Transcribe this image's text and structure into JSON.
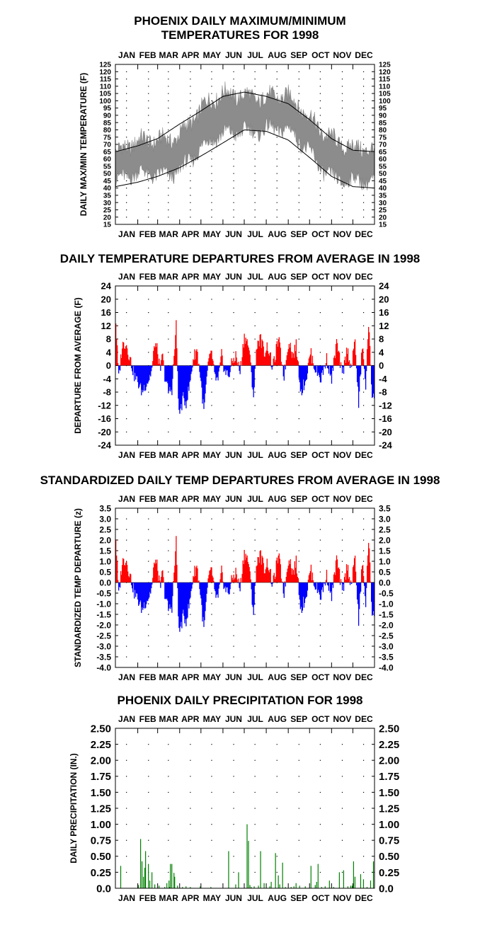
{
  "colors": {
    "range_fill": "#8c8c8c",
    "above": "#ff0000",
    "below": "#0000ff",
    "precip": "#008000",
    "frame": "#000000"
  },
  "chart_data": [
    {
      "type": "area",
      "title_line1": "PHOENIX DAILY MAXIMUM/MINIMUM",
      "title_line2": "TEMPERATURES FOR 1998",
      "ylabel": "DAILY MAX/MIN TEMPERATURE (F)",
      "months": [
        "JAN",
        "FEB",
        "MAR",
        "APR",
        "MAY",
        "JUN",
        "JUL",
        "AUG",
        "SEP",
        "OCT",
        "NOV",
        "DEC"
      ],
      "ylim": [
        15,
        125
      ],
      "yticks": [
        "15",
        "20",
        "25",
        "30",
        "35",
        "40",
        "45",
        "50",
        "55",
        "60",
        "65",
        "70",
        "75",
        "80",
        "85",
        "90",
        "95",
        "100",
        "105",
        "110",
        "115",
        "120",
        "125"
      ],
      "grid": "dotted",
      "normal_high": {
        "x": [
          1,
          32,
          60,
          91,
          121,
          152,
          182,
          213,
          244,
          274,
          305,
          335,
          365
        ],
        "y": [
          65,
          69,
          74,
          84,
          93,
          103,
          106,
          103,
          98,
          87,
          74,
          66,
          65
        ]
      },
      "normal_low": {
        "x": [
          1,
          32,
          60,
          91,
          121,
          152,
          182,
          213,
          244,
          274,
          305,
          335,
          365
        ],
        "y": [
          41,
          44,
          48,
          54,
          62,
          71,
          80,
          79,
          73,
          61,
          48,
          41,
          40
        ]
      },
      "daily_max_anchor": {
        "x": [
          1,
          32,
          60,
          91,
          121,
          152,
          182,
          213,
          244,
          274,
          305,
          335,
          365
        ],
        "y": [
          63,
          68,
          74,
          80,
          92,
          102,
          107,
          104,
          99,
          88,
          78,
          66,
          62
        ]
      },
      "daily_min_anchor": {
        "x": [
          1,
          32,
          60,
          91,
          121,
          152,
          182,
          213,
          244,
          274,
          305,
          335,
          365
        ],
        "y": [
          44,
          46,
          50,
          56,
          65,
          74,
          83,
          82,
          76,
          64,
          51,
          44,
          40
        ]
      }
    },
    {
      "type": "bar",
      "title": "DAILY TEMPERATURE DEPARTURES FROM AVERAGE IN 1998",
      "ylabel": "DEPARTURE FROM AVERAGE (F)",
      "ylim": [
        -24,
        24
      ],
      "yticks": [
        "-24",
        "-20",
        "-16",
        "-12",
        "-8",
        "-4",
        "0",
        "4",
        "8",
        "12",
        "16",
        "20",
        "24"
      ],
      "grid": "dotted",
      "anomaly_anchor": {
        "x": [
          1,
          5,
          10,
          15,
          20,
          27,
          32,
          38,
          42,
          48,
          52,
          56,
          60,
          64,
          66,
          70,
          75,
          80,
          86,
          90,
          96,
          100,
          105,
          110,
          115,
          120,
          125,
          130,
          135,
          140,
          145,
          150,
          155,
          160,
          165,
          170,
          176,
          182,
          188,
          195,
          200,
          205,
          210,
          215,
          222,
          230,
          238,
          245,
          250,
          255,
          262,
          270,
          275,
          282,
          290,
          298,
          305,
          312,
          320,
          327,
          333,
          338,
          343,
          348,
          353,
          357,
          362,
          365
        ],
        "y": [
          13,
          -4,
          6,
          7,
          3,
          -3,
          -5,
          -8,
          -6,
          -4,
          -1,
          7,
          4,
          -3,
          4,
          -3,
          -8,
          -7,
          12,
          -15,
          -10,
          -11,
          -6,
          2,
          5,
          -3,
          -14,
          -2,
          5,
          -3,
          -5,
          3,
          -2,
          -3,
          1,
          3,
          -2,
          9,
          6,
          -9,
          7,
          8,
          4,
          6,
          -1,
          8,
          -3,
          8,
          3,
          6,
          -8,
          -3,
          4,
          -1,
          -4,
          2,
          -4,
          7,
          -3,
          5,
          -1,
          8,
          -12,
          6,
          -6,
          13,
          -9,
          -8
        ]
      }
    },
    {
      "type": "bar",
      "title": "STANDARDIZED DAILY TEMP DEPARTURES FROM AVERAGE IN 1998",
      "ylabel": "STANDARDIZED TEMP DEPARTURE (z)",
      "ylim": [
        -4.0,
        3.5
      ],
      "yticks": [
        "-4.0",
        "-3.5",
        "-3.0",
        "-2.5",
        "-2.0",
        "-1.5",
        "-1.0",
        "-0.5",
        "0.0",
        "0.5",
        "1.0",
        "1.5",
        "2.0",
        "2.5",
        "3.0",
        "3.5"
      ],
      "grid": "dotted",
      "anomaly_scale_from_previous": 0.16
    },
    {
      "type": "bar",
      "title": "PHOENIX DAILY PRECIPITATION FOR 1998",
      "ylabel": "DAILY PRECIPITATION (IN.)",
      "ylim": [
        0,
        2.5
      ],
      "yticks": [
        "0.0",
        "0.25",
        "0.50",
        "0.75",
        "1.00",
        "1.25",
        "1.50",
        "1.75",
        "2.00",
        "2.25",
        "2.50"
      ],
      "grid": "dotted",
      "days": [
        8,
        33,
        36,
        38,
        40,
        42,
        43,
        47,
        49,
        52,
        56,
        62,
        70,
        73,
        76,
        77,
        78,
        80,
        83,
        84,
        88,
        95,
        100,
        106,
        120,
        135,
        160,
        170,
        174,
        186,
        188,
        190,
        192,
        196,
        202,
        205,
        210,
        218,
        220,
        226,
        230,
        232,
        236,
        240,
        248,
        252,
        255,
        260,
        268,
        276,
        282,
        284,
        286,
        291,
        296,
        302,
        308,
        316,
        322,
        328,
        332,
        334,
        336,
        338,
        346,
        350,
        355,
        360,
        364
      ],
      "values": [
        0.35,
        0.05,
        0.77,
        0.42,
        0.18,
        0.32,
        0.58,
        0.38,
        0.12,
        0.25,
        0.06,
        0.04,
        0.02,
        0.08,
        0.12,
        0.02,
        0.38,
        0.38,
        0.24,
        0.18,
        0.04,
        0.02,
        0.03,
        0.02,
        0.03,
        0.02,
        0.58,
        0.06,
        0.25,
        1.0,
        0.74,
        0.05,
        0.02,
        0.03,
        0.04,
        0.58,
        0.08,
        0.03,
        0.1,
        0.55,
        0.2,
        0.06,
        0.4,
        0.02,
        0.02,
        0.03,
        0.08,
        0.04,
        0.03,
        0.35,
        0.05,
        0.1,
        0.38,
        0.02,
        0.03,
        0.12,
        0.02,
        0.25,
        0.28,
        0.03,
        0.04,
        0.04,
        0.42,
        0.18,
        0.22,
        0.14,
        0.02,
        0.12,
        0.42
      ]
    }
  ]
}
